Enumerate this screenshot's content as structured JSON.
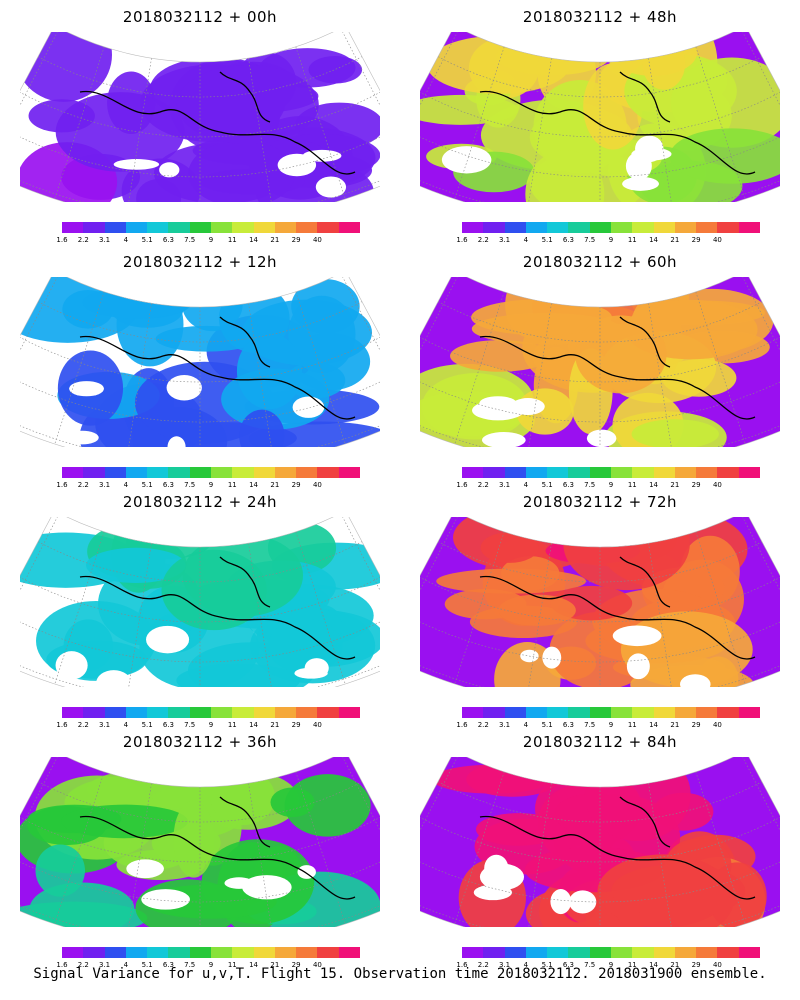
{
  "panels": [
    {
      "title": "2018032112 + 00h",
      "level": 0.0
    },
    {
      "title": "2018032112 + 48h",
      "level": 0.55
    },
    {
      "title": "2018032112 + 12h",
      "level": 0.12
    },
    {
      "title": "2018032112 + 60h",
      "level": 0.65
    },
    {
      "title": "2018032112 + 24h",
      "level": 0.25
    },
    {
      "title": "2018032112 + 72h",
      "level": 0.78
    },
    {
      "title": "2018032112 + 36h",
      "level": 0.4
    },
    {
      "title": "2018032112 + 84h",
      "level": 0.9
    }
  ],
  "colorbar": {
    "labels": [
      "1.6",
      "2.2",
      "3.1",
      "4",
      "5.1",
      "6.3",
      "7.5",
      "9",
      "11",
      "14",
      "21",
      "29",
      "40"
    ],
    "colors": [
      "#9a10f0",
      "#7020f0",
      "#2f4ff0",
      "#11a8f0",
      "#12c8d8",
      "#17cc9a",
      "#27c83a",
      "#88e23a",
      "#c8ec3a",
      "#f0d83a",
      "#f5a83a",
      "#f57a3a",
      "#f04040",
      "#f01078"
    ]
  },
  "footer": "Signal Variance for u,v,T. Flight 15. Observation time 2018032112. 2018031900 ensemble."
}
